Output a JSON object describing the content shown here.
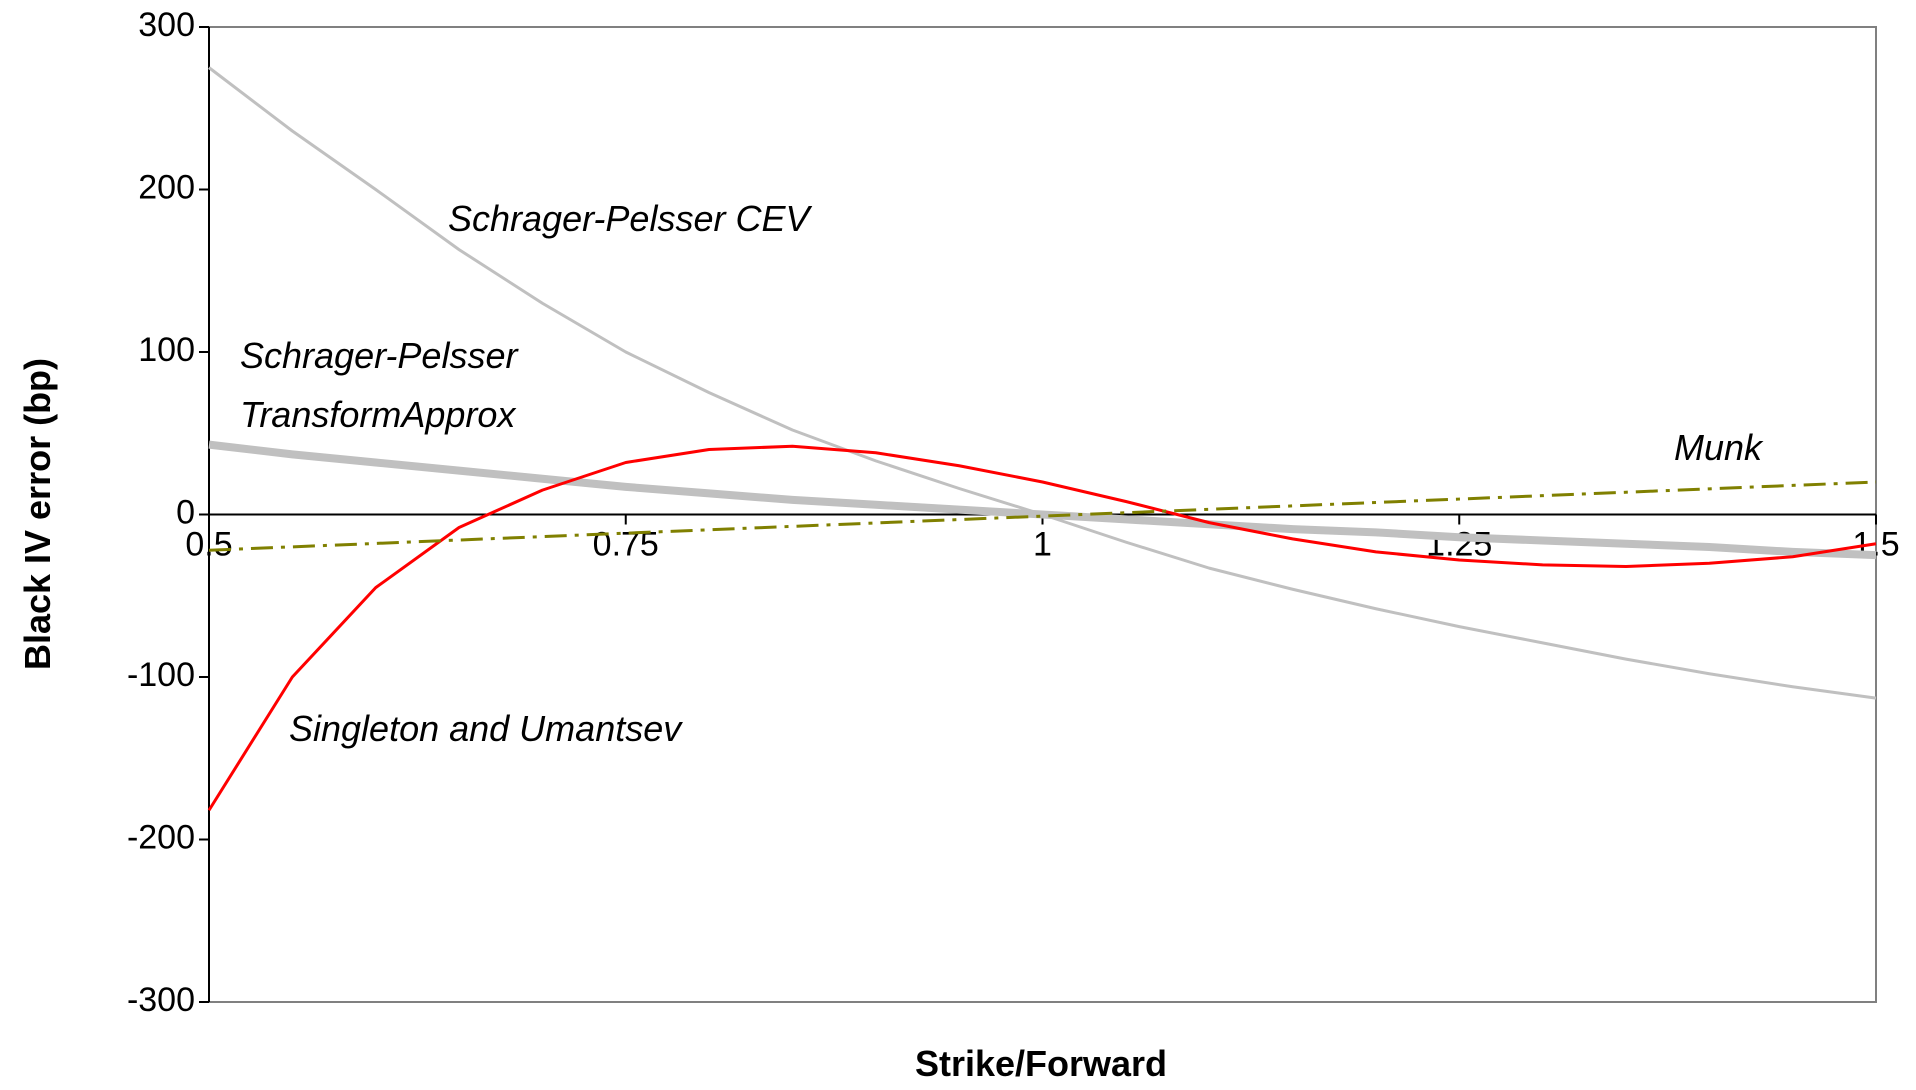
{
  "chart_data": {
    "type": "line",
    "x_label": "Strike/Forward",
    "y_label": "Black IV error (bp)",
    "x": [
      0.5,
      0.55,
      0.6,
      0.65,
      0.7,
      0.75,
      0.8,
      0.85,
      0.9,
      0.95,
      1,
      1.05,
      1.1,
      1.15,
      1.2,
      1.25,
      1.3,
      1.35,
      1.4,
      1.45,
      1.5
    ],
    "series": [
      {
        "name": "Schrager-Pelsser CEV",
        "color": "#c0c0c0",
        "width": 3,
        "values": [
          275,
          236,
          200,
          163,
          130,
          100,
          75,
          52,
          33,
          16,
          0,
          -17,
          -33,
          -46,
          -58,
          -69,
          -79,
          -89,
          -98,
          -106,
          -113
        ]
      },
      {
        "name": "Schrager-Pelsser TransformApprox",
        "color": "#c0c0c0",
        "width": 8,
        "values": [
          43,
          37,
          32,
          27,
          22,
          17,
          13,
          9,
          6,
          3,
          0,
          -3,
          -6,
          -9,
          -11,
          -14,
          -16,
          -18,
          -20,
          -23,
          -25
        ]
      },
      {
        "name": "Singleton and Umantsev",
        "color": "#ff0000",
        "width": 3,
        "values": [
          -182,
          -100,
          -45,
          -8,
          15,
          32,
          40,
          42,
          38,
          30,
          20,
          8,
          -5,
          -15,
          -23,
          -28,
          -31,
          -32,
          -30,
          -26,
          -18
        ]
      },
      {
        "name": "Munk",
        "color": "#808000",
        "width": 3,
        "dash": "dashdot",
        "values": [
          -22,
          -19.9,
          -17.8,
          -15.7,
          -13.6,
          -11.5,
          -9.4,
          -7.3,
          -5.2,
          -3.1,
          -1,
          1.1,
          3.2,
          5.3,
          7.4,
          9.5,
          11.6,
          13.7,
          15.8,
          17.9,
          20
        ]
      }
    ],
    "xlim": [
      0.5,
      1.5
    ],
    "xticks": [
      0.5,
      0.75,
      1,
      1.25,
      1.5
    ],
    "ylim": [
      -300,
      300
    ],
    "yticks": [
      -300,
      -200,
      -100,
      0,
      100,
      200,
      300
    ],
    "grid": false
  }
}
